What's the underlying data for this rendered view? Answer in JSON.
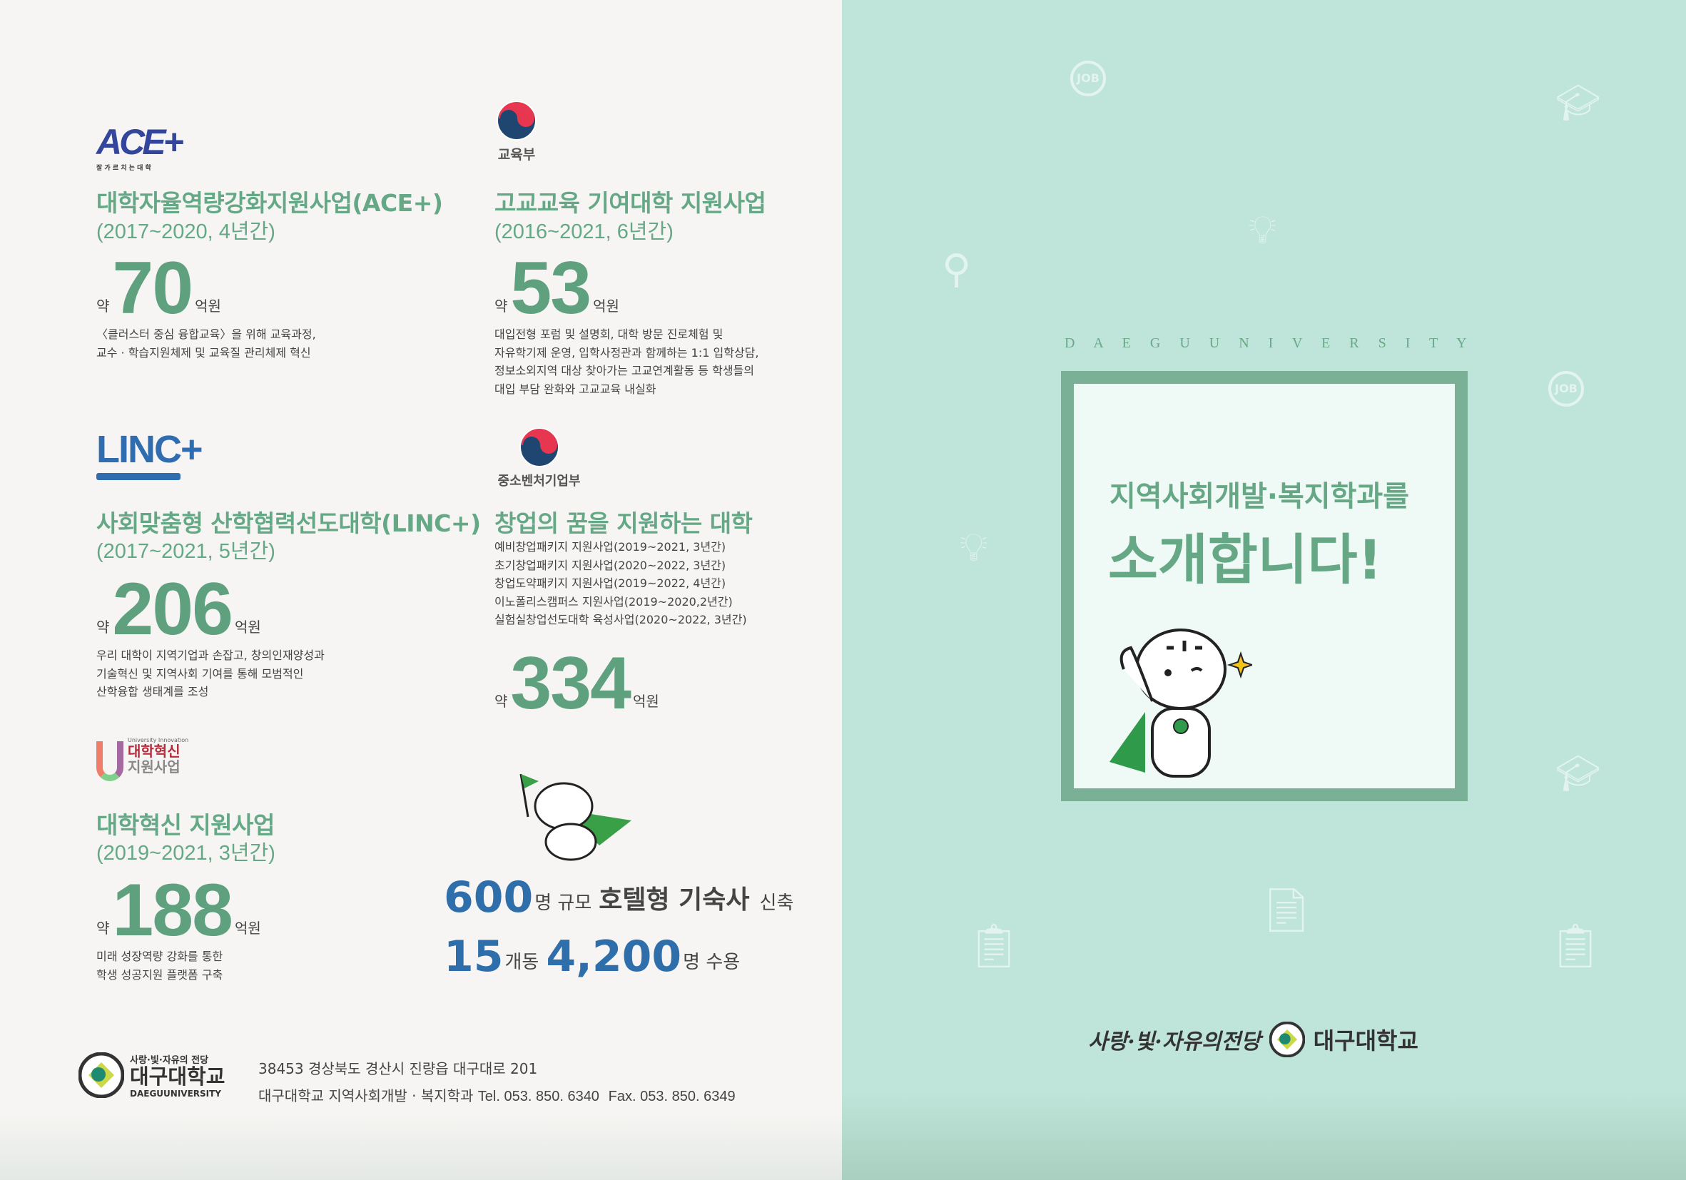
{
  "colors": {
    "green": "#65a886",
    "blue": "#2e6eab",
    "right_bg": "#bfe5da",
    "frame": "#7ab096"
  },
  "programs": [
    {
      "logo": "ACE+",
      "logo_sub": "잘 가 르 치 는 대 학",
      "title": "대학자율역량강화지원사업(ACE+)",
      "period": "(2017~2020, 4년간)",
      "prefix": "약",
      "amount": "70",
      "unit": "억원",
      "desc": [
        "〈클러스터 중심 융합교육〉을 위해 교육과정,",
        "교수 · 학습지원체제 및 교육질 관리체제 혁신"
      ]
    },
    {
      "logo": "교육부",
      "title": "고교교육 기여대학 지원사업",
      "period": "(2016~2021, 6년간)",
      "prefix": "약",
      "amount": "53",
      "unit": "억원",
      "desc": [
        "대입전형 포럼 및 설명회, 대학 방문 진로체험 및",
        "자유학기제 운영, 입학사정관과 함께하는 1:1 입학상담,",
        "정보소외지역 대상 찾아가는 고교연계활동 등 학생들의",
        "대입 부담 완화와 고교교육 내실화"
      ]
    },
    {
      "logo": "LINC+",
      "title": "사회맞춤형 산학협력선도대학(LINC+)",
      "period": "(2017~2021, 5년간)",
      "prefix": "약",
      "amount": "206",
      "unit": "억원",
      "desc": [
        "우리 대학이 지역기업과 손잡고, 창의인재양성과",
        "기술혁신 및 지역사회 기여를 통해 모범적인",
        "산학융합 생태계를 조성"
      ]
    },
    {
      "logo": "중소벤처기업부",
      "title": "창업의 꿈을 지원하는 대학",
      "items": [
        "예비창업패키지 지원사업(2019~2021, 3년간)",
        "초기창업패키지 지원사업(2020~2022, 3년간)",
        "창업도약패키지 지원사업(2019~2022, 4년간)",
        "이노폴리스캠퍼스 지원사업(2019~2020,2년간)",
        "실험실창업선도대학 육성사업(2020~2022, 3년간)"
      ],
      "prefix": "약",
      "amount": "334",
      "unit": "억원"
    },
    {
      "logo_en": "University Innovation",
      "logo_l1": "대학혁신",
      "logo_l2": "지원사업",
      "title": "대학혁신 지원사업",
      "period": "(2019~2021, 3년간)",
      "prefix": "약",
      "amount": "188",
      "unit": "억원",
      "desc": [
        "미래 성장역량 강화를 통한",
        "학생 성공지원 플랫폼 구축"
      ]
    }
  ],
  "dorm": {
    "n1": "600",
    "u1": "명 규모",
    "b1": "호텔형 기숙사",
    "t1": "신축",
    "n2": "15",
    "u2": "개동",
    "n3": "4,200",
    "u3": "명 수용"
  },
  "footer": {
    "slogan": "사랑·빛·자유의 전당",
    "univ": "대구대학교",
    "univ_en": "DAEGUUNIVERSITY",
    "address": "38453 경상북도 경산시 진량읍 대구대로 201",
    "dept": "대구대학교 지역사회개발 · 복지학과",
    "tel": "Tel. 053. 850. 6340",
    "fax": "Fax. 053. 850. 6349"
  },
  "cover": {
    "spaced": "D A E G U U N I V E R S I T Y",
    "line1": "지역사회개발·복지학과를",
    "line2": "소개합니다!",
    "slogan": "사랑·빛·자유의전당",
    "univ": "대구대학교",
    "icon_job": "JOB"
  }
}
